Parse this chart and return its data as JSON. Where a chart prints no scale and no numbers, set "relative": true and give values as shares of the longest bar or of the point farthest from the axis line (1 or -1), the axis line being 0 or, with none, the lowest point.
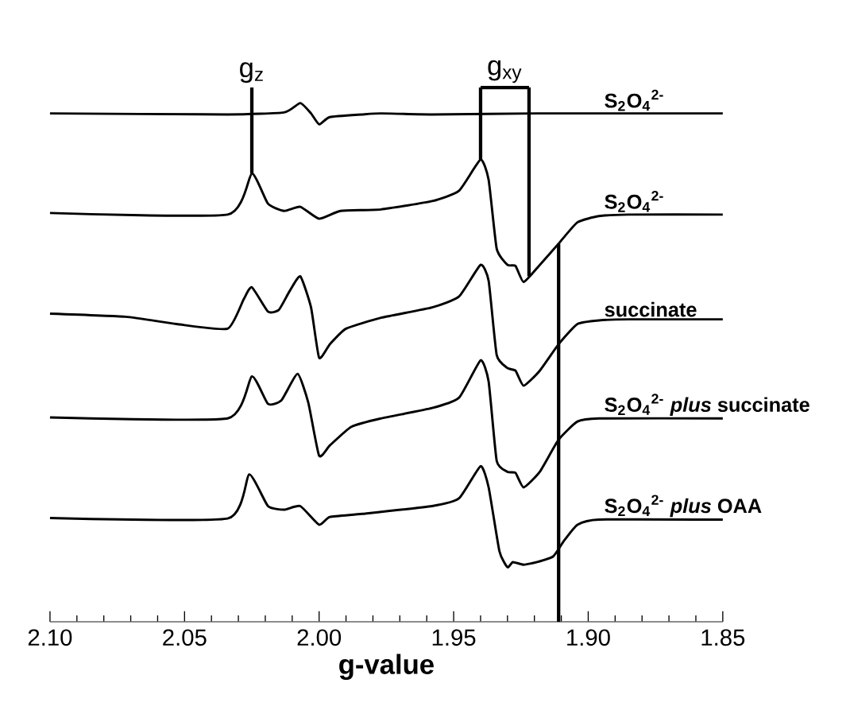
{
  "chart_data": {
    "type": "line",
    "relative": true,
    "xlabel": "g-value",
    "xlim": [
      2.1,
      1.85
    ],
    "xticks": [
      {
        "value": 2.1,
        "label": "2.10"
      },
      2.05,
      {
        "value": 2.0,
        "label": "2.00"
      },
      1.95,
      {
        "value": 1.9,
        "label": "1.90"
      },
      1.85
    ],
    "series": [
      {
        "name": "S$_{2}$O$_{4}$$^{2-}$",
        "color": "#000000",
        "x": [
          2.1,
          2.034,
          2.013,
          2.007,
          2.003,
          2.0,
          1.996,
          1.984,
          1.977,
          1.958,
          1.919,
          1.85
        ],
        "values": [
          0.98,
          0.978,
          0.982,
          1.0,
          0.98,
          0.959,
          0.973,
          0.978,
          0.98,
          0.978,
          0.98,
          0.98
        ]
      },
      {
        "name": "S$_{2}$O$_{4}$$^{2-}$",
        "color": "#000000",
        "x": [
          2.1,
          2.034,
          2.025,
          2.019,
          2.013,
          2.007,
          2.0,
          1.992,
          1.977,
          1.958,
          1.948,
          1.94,
          1.937,
          1.934,
          1.93,
          1.927,
          1.924,
          1.918,
          1.911,
          1.904,
          1.896,
          1.885,
          1.85
        ],
        "values": [
          0.788,
          0.785,
          0.864,
          0.806,
          0.792,
          0.8,
          0.777,
          0.792,
          0.795,
          0.811,
          0.831,
          0.891,
          0.852,
          0.719,
          0.688,
          0.686,
          0.655,
          0.688,
          0.729,
          0.77,
          0.782,
          0.785,
          0.785
        ]
      },
      {
        "name": "succinate",
        "color": "#000000",
        "x": [
          2.1,
          2.072,
          2.053,
          2.034,
          2.028,
          2.025,
          2.019,
          2.015,
          2.011,
          2.007,
          2.003,
          2.0,
          1.996,
          1.99,
          1.977,
          1.958,
          1.948,
          1.94,
          1.937,
          1.934,
          1.93,
          1.927,
          1.924,
          1.918,
          1.911,
          1.904,
          1.896,
          1.885,
          1.85
        ],
        "values": [
          0.594,
          0.588,
          0.574,
          0.565,
          0.622,
          0.645,
          0.598,
          0.601,
          0.637,
          0.666,
          0.606,
          0.509,
          0.535,
          0.565,
          0.586,
          0.606,
          0.627,
          0.688,
          0.657,
          0.514,
          0.489,
          0.484,
          0.455,
          0.484,
          0.535,
          0.574,
          0.581,
          0.583,
          0.583
        ]
      },
      {
        "name": "S$_{2}$O$_{4}$$^{2-}$ *plus* succinate",
        "color": "#000000",
        "x": [
          2.1,
          2.034,
          2.025,
          2.019,
          2.014,
          2.008,
          2.004,
          2.0,
          1.996,
          1.988,
          1.977,
          1.958,
          1.948,
          1.94,
          1.937,
          1.934,
          1.93,
          1.927,
          1.924,
          1.918,
          1.911,
          1.904,
          1.896,
          1.85
        ],
        "values": [
          0.394,
          0.392,
          0.473,
          0.42,
          0.427,
          0.478,
          0.422,
          0.32,
          0.34,
          0.376,
          0.392,
          0.412,
          0.432,
          0.504,
          0.463,
          0.31,
          0.289,
          0.287,
          0.259,
          0.289,
          0.351,
          0.386,
          0.392,
          0.392
        ]
      },
      {
        "name": "S$_{2}$O$_{4}$$^{2-}$ *plus* OAA",
        "color": "#000000",
        "x": [
          2.1,
          2.034,
          2.026,
          2.019,
          2.013,
          2.007,
          2.0,
          1.996,
          1.984,
          1.958,
          1.948,
          1.94,
          1.937,
          1.933,
          1.93,
          1.928,
          1.924,
          1.919,
          1.913,
          1.909,
          1.904,
          1.896,
          1.85
        ],
        "values": [
          0.2,
          0.199,
          0.284,
          0.223,
          0.216,
          0.223,
          0.187,
          0.202,
          0.208,
          0.223,
          0.238,
          0.3,
          0.259,
          0.136,
          0.105,
          0.115,
          0.11,
          0.115,
          0.126,
          0.156,
          0.187,
          0.197,
          0.197
        ]
      }
    ],
    "annotations": [
      {
        "text": "g$_{z}$",
        "x": 2.025,
        "y": 0.864
      },
      {
        "text": "g$_{xy}$",
        "x": 1.94,
        "y": 0.891
      }
    ],
    "ref_lines": [
      {
        "axis": "x",
        "value": 1.922
      },
      {
        "axis": "x",
        "value": 1.911
      }
    ]
  }
}
